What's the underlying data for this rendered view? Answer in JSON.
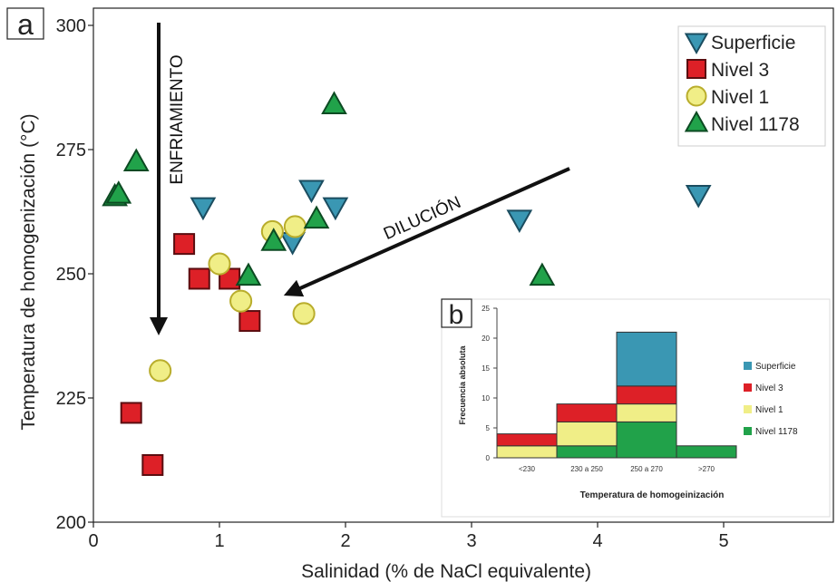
{
  "panel_a_label": "a",
  "panel_b_label": "b",
  "arrow_labels": {
    "cooling": "ENFRIAMIENTO",
    "dilution": "DILUCIÓN"
  },
  "colors": {
    "superficie": "#3a97b3",
    "nivel3": "#dd2027",
    "nivel1": "#f0ee87",
    "nivel1178": "#21a24a"
  },
  "chart_data": [
    {
      "type": "scatter",
      "title": "",
      "xlabel": "Salinidad (% de NaCl equivalente)",
      "ylabel": "Temperatura de homogenización (°C)",
      "xlim": [
        0,
        5.8
      ],
      "ylim": [
        200,
        300
      ],
      "xticks": [
        "0",
        "1",
        "2",
        "3",
        "4",
        "5"
      ],
      "yticks": [
        "200",
        "225",
        "250",
        "275",
        "300"
      ],
      "legend_position": "top-right",
      "series": [
        {
          "name": "Superficie",
          "marker": "triangle-down",
          "points": [
            [
              0.87,
              263.5
            ],
            [
              1.58,
              256.5
            ],
            [
              1.73,
              267
            ],
            [
              1.92,
              263.5
            ],
            [
              3.38,
              261
            ],
            [
              4.8,
              266
            ]
          ]
        },
        {
          "name": "Nivel 3",
          "marker": "square",
          "points": [
            [
              0.72,
              256
            ],
            [
              0.84,
              249
            ],
            [
              1.08,
              249
            ],
            [
              1.24,
              240.5
            ],
            [
              0.3,
              222
            ],
            [
              0.47,
              211.5
            ]
          ]
        },
        {
          "name": "Nivel 1",
          "marker": "circle",
          "points": [
            [
              1.0,
              252
            ],
            [
              1.17,
              244.5
            ],
            [
              1.42,
              258.5
            ],
            [
              1.6,
              259.5
            ],
            [
              1.67,
              242
            ],
            [
              0.53,
              230.5
            ]
          ]
        },
        {
          "name": "Nivel 1178",
          "marker": "triangle-up",
          "points": [
            [
              0.17,
              265.5
            ],
            [
              0.2,
              266
            ],
            [
              0.34,
              272.5
            ],
            [
              1.23,
              249.5
            ],
            [
              1.43,
              256.5
            ],
            [
              1.77,
              261
            ],
            [
              1.91,
              284
            ],
            [
              3.56,
              249.5
            ]
          ]
        }
      ]
    },
    {
      "type": "bar",
      "stacked": true,
      "title": "",
      "xlabel": "Temperatura de homogeinización",
      "ylabel": "Frecuencia absoluta",
      "ylim": [
        0,
        25
      ],
      "yticks": [
        "0",
        "5",
        "10",
        "15",
        "20",
        "25"
      ],
      "categories": [
        "<230",
        "230 a 250",
        "250 a 270",
        ">270"
      ],
      "legend_position": "right",
      "series": [
        {
          "name": "Superficie",
          "values": [
            0,
            0,
            9,
            0
          ]
        },
        {
          "name": "Nivel 3",
          "values": [
            2,
            3,
            3,
            0
          ]
        },
        {
          "name": "Nivel 1",
          "values": [
            2,
            4,
            3,
            0
          ]
        },
        {
          "name": "Nivel 1178",
          "values": [
            0,
            2,
            6,
            2
          ]
        }
      ]
    }
  ]
}
